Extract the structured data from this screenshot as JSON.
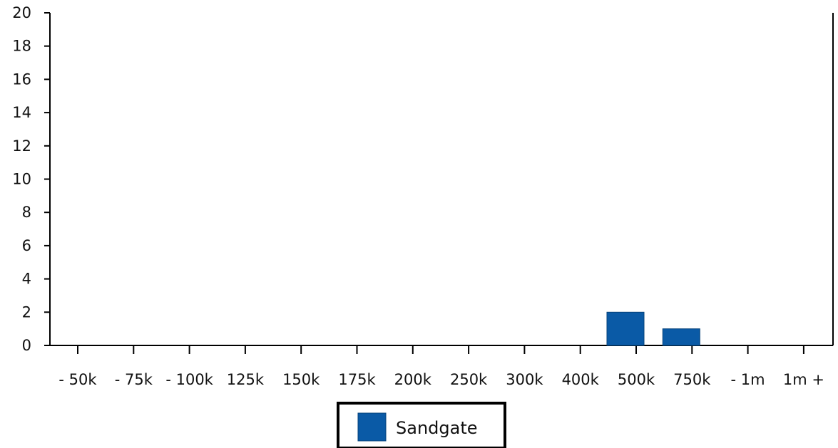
{
  "chart_data": {
    "type": "bar",
    "categories": [
      "- 50k",
      "- 75k",
      "- 100k",
      "- 125k",
      "- 150k",
      "- 175k",
      "- 200k",
      "- 250k",
      "- 300k",
      "- 400k",
      "- 500k",
      "- 750k",
      "- 1m",
      "1m +"
    ],
    "tick_labels": [
      "- 50k",
      "- 75k",
      "- 100k",
      "125k",
      "150k",
      "175k",
      "200k",
      "250k",
      "300k",
      "400k",
      "500k",
      "750k",
      "- 1m",
      "1m +"
    ],
    "series": [
      {
        "name": "Sandgate",
        "color": "#0a5aa6",
        "values": [
          0,
          0,
          0,
          0,
          0,
          0,
          0,
          0,
          0,
          0,
          2,
          1,
          0,
          0
        ]
      }
    ],
    "ylim": [
      0,
      20
    ],
    "yticks": [
      "0",
      "2",
      "4",
      "6",
      "8",
      "10",
      "12",
      "14",
      "16",
      "18",
      "20"
    ],
    "grid": false,
    "legend_position": "bottom-center"
  },
  "legend": {
    "label": "Sandgate",
    "swatch_color": "#0a5aa6"
  }
}
